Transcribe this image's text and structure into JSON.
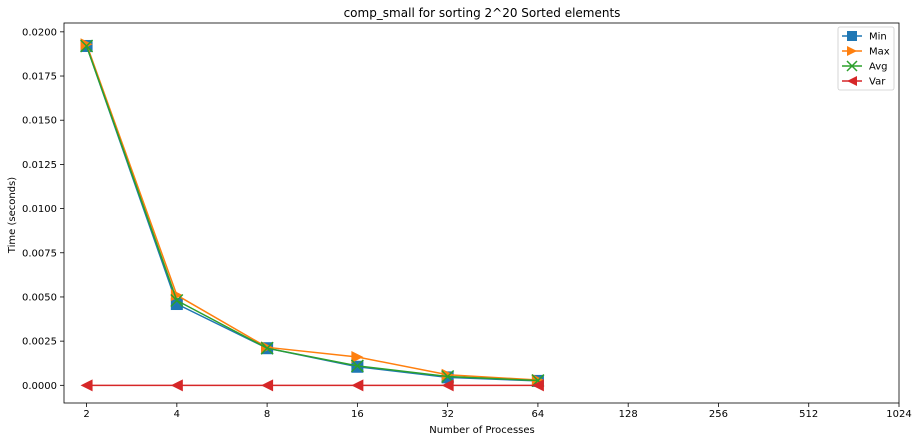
{
  "chart_data": {
    "type": "line",
    "title": "comp_small for sorting 2^20 Sorted elements",
    "xlabel": "Number of Processes",
    "ylabel": "Time (seconds)",
    "x_scale": "log2",
    "x_ticks": [
      "2",
      "4",
      "8",
      "16",
      "32",
      "64",
      "128",
      "256",
      "512",
      "1024"
    ],
    "x_tick_values": [
      2,
      4,
      8,
      16,
      32,
      64,
      128,
      256,
      512,
      1024
    ],
    "x": [
      2,
      4,
      8,
      16,
      32,
      64
    ],
    "ylim": [
      -0.001,
      0.0205
    ],
    "y_ticks": [
      "0.0000",
      "0.0025",
      "0.0050",
      "0.0075",
      "0.0100",
      "0.0125",
      "0.0150",
      "0.0175",
      "0.0200"
    ],
    "y_tick_values": [
      0,
      0.0025,
      0.005,
      0.0075,
      0.01,
      0.0125,
      0.015,
      0.0175,
      0.02
    ],
    "grid": false,
    "legend": "top-right",
    "series": [
      {
        "name": "Min",
        "color": "#1f77b4",
        "marker": "square",
        "values": [
          0.0192,
          0.0046,
          0.0021,
          0.00105,
          0.00045,
          0.00025
        ]
      },
      {
        "name": "Max",
        "color": "#ff7f0e",
        "marker": "triangle-right",
        "values": [
          0.0193,
          0.0051,
          0.00215,
          0.0016,
          0.0006,
          0.0003
        ]
      },
      {
        "name": "Avg",
        "color": "#2ca02c",
        "marker": "x",
        "values": [
          0.0192,
          0.0048,
          0.0021,
          0.0011,
          0.0005,
          0.00027
        ]
      },
      {
        "name": "Var",
        "color": "#d62728",
        "marker": "triangle-left",
        "values": [
          0.0,
          0.0,
          0.0,
          0.0,
          0.0,
          0.0
        ]
      }
    ]
  }
}
